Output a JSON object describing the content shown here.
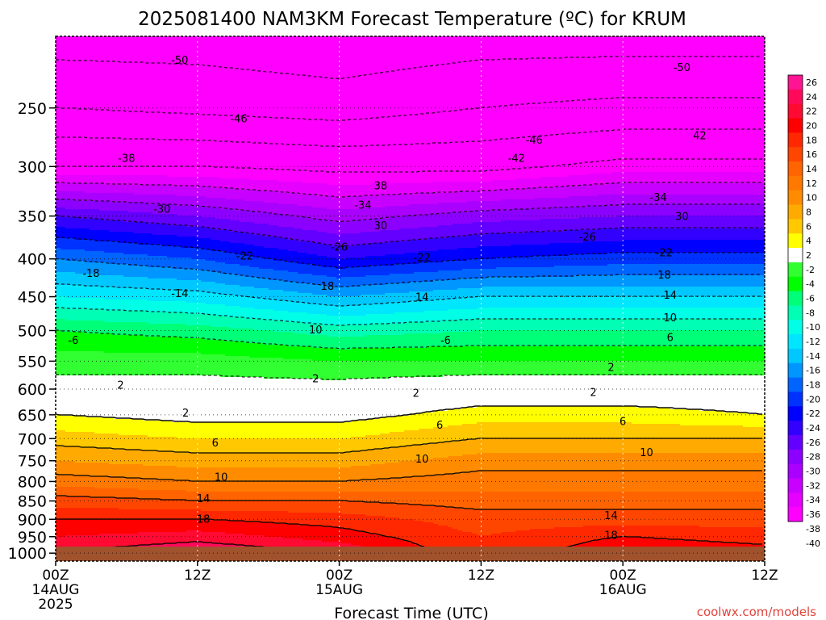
{
  "chart_data": {
    "type": "heatmap",
    "title": "2025081400 NAM3KM Forecast Temperature (ºC) for KRUM",
    "xlabel": "Forecast Time (UTC)",
    "ylabel": "",
    "credit": "coolwx.com/models",
    "x_ticks": [
      {
        "hour": 0,
        "l1": "00Z",
        "l2": "14AUG",
        "l3": "2025"
      },
      {
        "hour": 12,
        "l1": "12Z",
        "l2": "",
        "l3": ""
      },
      {
        "hour": 24,
        "l1": "00Z",
        "l2": "15AUG",
        "l3": ""
      },
      {
        "hour": 36,
        "l1": "12Z",
        "l2": "",
        "l3": ""
      },
      {
        "hour": 48,
        "l1": "00Z",
        "l2": "16AUG",
        "l3": ""
      },
      {
        "hour": 60,
        "l1": "12Z",
        "l2": "",
        "l3": ""
      }
    ],
    "xlim": [
      0,
      60
    ],
    "y_scale": "log-pressure",
    "ylim": [
      1025,
      200
    ],
    "y_ticks": [
      250,
      300,
      350,
      400,
      450,
      500,
      550,
      600,
      650,
      700,
      750,
      800,
      850,
      900,
      950,
      1000
    ],
    "ground_pressure": 980,
    "ground_color": "#a0522d",
    "colorbar": {
      "labels": [
        "26",
        "24",
        "22",
        "20",
        "18",
        "16",
        "14",
        "12",
        "10",
        "8",
        "6",
        "4",
        "2",
        "-2",
        "-4",
        "-6",
        "-8",
        "-10",
        "-12",
        "-14",
        "-16",
        "-18",
        "-20",
        "-22",
        "-24",
        "-26",
        "-28",
        "-30",
        "-32",
        "-34",
        "-36",
        "-38",
        "-40"
      ],
      "colors": [
        "#ff1493",
        "#ff0a5a",
        "#ff0a32",
        "#ff0000",
        "#ff2800",
        "#ff4600",
        "#ff6400",
        "#ff7800",
        "#ff8c00",
        "#ffaa00",
        "#ffc800",
        "#ffff00",
        "#ffffff",
        "#32ff32",
        "#00ff00",
        "#00ff78",
        "#00ffb4",
        "#00ffe6",
        "#00e6ff",
        "#00c8ff",
        "#0096ff",
        "#0064ff",
        "#0032ff",
        "#0000ff",
        "#3200ff",
        "#6400ff",
        "#8c00ff",
        "#aa00ff",
        "#c800ff",
        "#e600ff",
        "#ff00ff"
      ]
    },
    "temperature_profiles": [
      {
        "hour": 0,
        "points": [
          [
            1000,
            22
          ],
          [
            950,
            20
          ],
          [
            900,
            18
          ],
          [
            850,
            15
          ],
          [
            800,
            11
          ],
          [
            750,
            8
          ],
          [
            700,
            5
          ],
          [
            650,
            2
          ],
          [
            600,
            -1
          ],
          [
            550,
            -3
          ],
          [
            500,
            -6
          ],
          [
            450,
            -12
          ],
          [
            400,
            -18
          ],
          [
            350,
            -26
          ],
          [
            300,
            -38
          ],
          [
            250,
            -46
          ],
          [
            200,
            -52
          ]
        ]
      },
      {
        "hour": 12,
        "points": [
          [
            1000,
            24
          ],
          [
            950,
            21
          ],
          [
            900,
            18
          ],
          [
            850,
            14
          ],
          [
            800,
            10
          ],
          [
            750,
            7
          ],
          [
            700,
            4
          ],
          [
            650,
            1
          ],
          [
            600,
            -1
          ],
          [
            550,
            -3
          ],
          [
            500,
            -7
          ],
          [
            450,
            -13
          ],
          [
            400,
            -20
          ],
          [
            350,
            -28
          ],
          [
            300,
            -38
          ],
          [
            250,
            -47
          ],
          [
            200,
            -52
          ]
        ]
      },
      {
        "hour": 24,
        "points": [
          [
            1000,
            22
          ],
          [
            950,
            19
          ],
          [
            900,
            17
          ],
          [
            850,
            14
          ],
          [
            800,
            10
          ],
          [
            750,
            7
          ],
          [
            700,
            4
          ],
          [
            650,
            1
          ],
          [
            600,
            -1
          ],
          [
            550,
            -4
          ],
          [
            500,
            -9
          ],
          [
            450,
            -16
          ],
          [
            400,
            -24
          ],
          [
            350,
            -31
          ],
          [
            300,
            -39
          ],
          [
            250,
            -48
          ],
          [
            200,
            -53
          ]
        ]
      },
      {
        "hour": 36,
        "points": [
          [
            1000,
            16
          ],
          [
            950,
            16
          ],
          [
            900,
            15
          ],
          [
            850,
            13
          ],
          [
            800,
            11
          ],
          [
            750,
            9
          ],
          [
            700,
            6
          ],
          [
            650,
            3
          ],
          [
            600,
            0
          ],
          [
            550,
            -4
          ],
          [
            500,
            -8
          ],
          [
            450,
            -14
          ],
          [
            400,
            -22
          ],
          [
            350,
            -29
          ],
          [
            300,
            -39
          ],
          [
            250,
            -46
          ],
          [
            200,
            -52
          ]
        ]
      },
      {
        "hour": 48,
        "points": [
          [
            1000,
            20
          ],
          [
            950,
            18
          ],
          [
            900,
            15
          ],
          [
            850,
            13
          ],
          [
            800,
            11
          ],
          [
            750,
            9
          ],
          [
            700,
            6
          ],
          [
            650,
            3
          ],
          [
            600,
            0
          ],
          [
            550,
            -4
          ],
          [
            500,
            -8
          ],
          [
            450,
            -14
          ],
          [
            400,
            -21
          ],
          [
            350,
            -28
          ],
          [
            300,
            -37
          ],
          [
            250,
            -45
          ],
          [
            200,
            -52
          ]
        ]
      },
      {
        "hour": 60,
        "points": [
          [
            1000,
            19
          ],
          [
            950,
            17
          ],
          [
            900,
            15
          ],
          [
            850,
            13
          ],
          [
            800,
            11
          ],
          [
            750,
            9
          ],
          [
            700,
            6
          ],
          [
            650,
            2
          ],
          [
            600,
            0
          ],
          [
            550,
            -4
          ],
          [
            500,
            -8
          ],
          [
            450,
            -14
          ],
          [
            400,
            -21
          ],
          [
            350,
            -28
          ],
          [
            300,
            -37
          ],
          [
            250,
            -45
          ],
          [
            200,
            -52
          ]
        ]
      }
    ],
    "contour_labels": [
      {
        "text": "-50",
        "hour": 10.5,
        "p": 215
      },
      {
        "text": "-50",
        "hour": 53,
        "p": 220
      },
      {
        "text": "-46",
        "hour": 15.5,
        "p": 258
      },
      {
        "text": "-46",
        "hour": 40.5,
        "p": 276
      },
      {
        "text": "-42",
        "hour": 39,
        "p": 292
      },
      {
        "text": "42",
        "hour": 54.5,
        "p": 272
      },
      {
        "text": "-38",
        "hour": 6,
        "p": 292
      },
      {
        "text": "38",
        "hour": 27.5,
        "p": 318
      },
      {
        "text": "-34",
        "hour": 26,
        "p": 338
      },
      {
        "text": "-34",
        "hour": 51,
        "p": 330
      },
      {
        "text": "-30",
        "hour": 9,
        "p": 342
      },
      {
        "text": "30",
        "hour": 27.5,
        "p": 360
      },
      {
        "text": "30",
        "hour": 53,
        "p": 350
      },
      {
        "text": "-26",
        "hour": 24,
        "p": 385
      },
      {
        "text": "-26",
        "hour": 45,
        "p": 373
      },
      {
        "text": "-22",
        "hour": 16,
        "p": 396
      },
      {
        "text": "-22",
        "hour": 31,
        "p": 398
      },
      {
        "text": "-22",
        "hour": 51.5,
        "p": 392
      },
      {
        "text": "-18",
        "hour": 3,
        "p": 418
      },
      {
        "text": "18",
        "hour": 23,
        "p": 435
      },
      {
        "text": "18",
        "hour": 51.5,
        "p": 420
      },
      {
        "text": "-14",
        "hour": 10.5,
        "p": 445
      },
      {
        "text": "14",
        "hour": 31,
        "p": 450
      },
      {
        "text": "14",
        "hour": 52,
        "p": 447
      },
      {
        "text": "10",
        "hour": 22,
        "p": 498
      },
      {
        "text": "10",
        "hour": 52,
        "p": 480
      },
      {
        "text": "-6",
        "hour": 1.5,
        "p": 515
      },
      {
        "text": "-6",
        "hour": 33,
        "p": 515
      },
      {
        "text": "6",
        "hour": 52,
        "p": 510
      },
      {
        "text": "2",
        "hour": 22,
        "p": 580
      },
      {
        "text": "2",
        "hour": 47,
        "p": 560
      },
      {
        "text": "2",
        "hour": 5.5,
        "p": 592
      },
      {
        "text": "2",
        "hour": 30.5,
        "p": 607
      },
      {
        "text": "2",
        "hour": 45.5,
        "p": 605
      },
      {
        "text": "2",
        "hour": 11,
        "p": 645
      },
      {
        "text": "6",
        "hour": 32.5,
        "p": 670
      },
      {
        "text": "6",
        "hour": 48,
        "p": 663
      },
      {
        "text": "6",
        "hour": 13.5,
        "p": 708
      },
      {
        "text": "10",
        "hour": 31,
        "p": 745
      },
      {
        "text": "10",
        "hour": 50,
        "p": 730
      },
      {
        "text": "10",
        "hour": 14,
        "p": 788
      },
      {
        "text": "14",
        "hour": 12.5,
        "p": 843
      },
      {
        "text": "14",
        "hour": 47,
        "p": 888
      },
      {
        "text": "18",
        "hour": 12.5,
        "p": 898
      },
      {
        "text": "18",
        "hour": 47,
        "p": 945
      }
    ]
  }
}
